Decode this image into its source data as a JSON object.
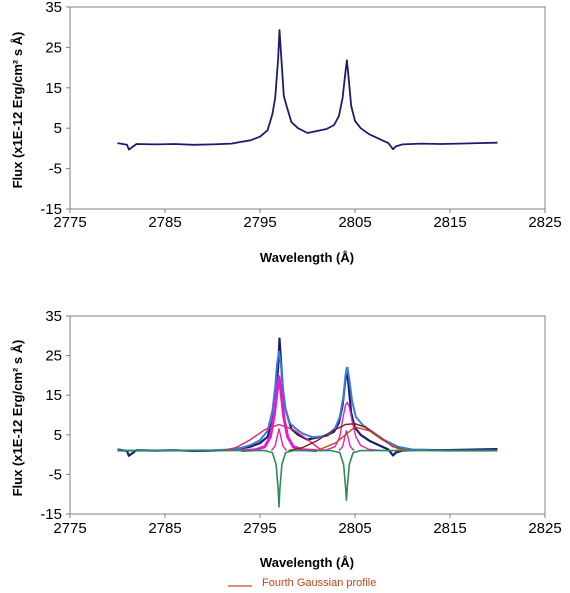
{
  "chart_data": [
    {
      "type": "line",
      "title": "",
      "xlabel": "Wavelength (Å)",
      "ylabel": "Flux (x1E-12 Erg/cm² s Å)",
      "xlim": [
        2775,
        2825
      ],
      "ylim": [
        -15,
        35
      ],
      "xticks": [
        "2775",
        "2785",
        "2795",
        "2805",
        "2815",
        "2825"
      ],
      "yticks": [
        "35",
        "25",
        "15",
        "5",
        "-5",
        "-15"
      ],
      "grid": false,
      "series": [
        {
          "color": "#1c1c6e",
          "x": [
            2780,
            2781,
            2781.2,
            2782,
            2784,
            2786,
            2788,
            2790,
            2792,
            2793,
            2794,
            2795,
            2795.8,
            2796.3,
            2796.6,
            2796.9,
            2797.05,
            2797.2,
            2797.5,
            2797.8,
            2798.3,
            2799,
            2800,
            2801,
            2802,
            2802.8,
            2803.3,
            2803.7,
            2804,
            2804.15,
            2804.3,
            2804.6,
            2805,
            2805.6,
            2806.5,
            2807.5,
            2808.5,
            2809,
            2809.3,
            2810,
            2812,
            2814,
            2816,
            2818,
            2820
          ],
          "y": [
            1.3,
            0.9,
            -0.3,
            1.1,
            1.0,
            1.1,
            0.9,
            1.0,
            1.2,
            1.6,
            2.0,
            2.9,
            4.5,
            8.5,
            12.5,
            22,
            29.3,
            24,
            13,
            10.5,
            6.5,
            5.0,
            3.8,
            4.3,
            4.8,
            5.8,
            8.0,
            12.5,
            19,
            21.8,
            18,
            10.5,
            6.8,
            5.0,
            3.5,
            2.4,
            1.3,
            -0.2,
            0.5,
            1.0,
            1.2,
            1.1,
            1.2,
            1.3,
            1.4
          ]
        }
      ]
    },
    {
      "type": "line",
      "title": "",
      "xlabel": "Wavelength (Å)",
      "ylabel": "Flux (x1E-12 Erg/cm² s Å)",
      "xlim": [
        2775,
        2825
      ],
      "ylim": [
        -15,
        35
      ],
      "xticks": [
        "2775",
        "2785",
        "2795",
        "2805",
        "2815",
        "2825"
      ],
      "yticks": [
        "35",
        "25",
        "15",
        "5",
        "-5",
        "-15"
      ],
      "grid": false,
      "legend": {
        "placement": "bottom-center",
        "entries": [
          "Fourth Gaussian profile"
        ]
      },
      "series": [
        {
          "color": "#1c1c6e",
          "x": [
            2780,
            2781,
            2781.2,
            2782,
            2784,
            2786,
            2788,
            2790,
            2792,
            2793,
            2794,
            2795,
            2795.8,
            2796.3,
            2796.6,
            2796.9,
            2797.05,
            2797.2,
            2797.5,
            2797.8,
            2798.3,
            2799,
            2800,
            2801,
            2802,
            2802.8,
            2803.3,
            2803.7,
            2804,
            2804.15,
            2804.3,
            2804.6,
            2805,
            2805.6,
            2806.5,
            2807.5,
            2808.5,
            2809,
            2809.3,
            2810,
            2812,
            2814,
            2816,
            2818,
            2820
          ],
          "y": [
            1.3,
            0.9,
            -0.3,
            1.1,
            1.0,
            1.1,
            0.9,
            1.0,
            1.2,
            1.6,
            2.0,
            2.9,
            4.5,
            8.5,
            12.5,
            22,
            29.3,
            24,
            13,
            10.5,
            6.5,
            5.0,
            3.8,
            4.3,
            4.8,
            5.8,
            8.0,
            12.5,
            19,
            21.8,
            18,
            10.5,
            6.8,
            5.0,
            3.5,
            2.4,
            1.3,
            -0.2,
            0.5,
            1.0,
            1.2,
            1.1,
            1.2,
            1.3,
            1.4
          ]
        },
        {
          "color": "#3c7bdc",
          "x": [
            2780,
            2785,
            2790,
            2792,
            2793,
            2794,
            2795,
            2795.8,
            2796.3,
            2796.6,
            2796.8,
            2797.0,
            2797.2,
            2797.4,
            2797.7,
            2798.1,
            2798.8,
            2799.5,
            2800.5,
            2801.5,
            2802.3,
            2802.9,
            2803.4,
            2803.8,
            2804.0,
            2804.2,
            2804.4,
            2804.7,
            2805.1,
            2805.8,
            2806.8,
            2808,
            2809.5,
            2811,
            2814,
            2817,
            2820
          ],
          "y": [
            1.0,
            1.0,
            1.1,
            1.3,
            1.7,
            2.4,
            3.6,
            6.0,
            11,
            17,
            23,
            26,
            23,
            17,
            11.5,
            8.0,
            6.5,
            5.3,
            4.4,
            4.6,
            5.3,
            6.7,
            9.5,
            15,
            20,
            22,
            19,
            13.5,
            9.5,
            7.5,
            5.8,
            3.8,
            2.0,
            1.3,
            1.0,
            1.0,
            1.0
          ]
        },
        {
          "color": "#e020c8",
          "x": [
            2793,
            2794.5,
            2795.5,
            2796.1,
            2796.5,
            2796.8,
            2797.0,
            2797.2,
            2797.5,
            2797.9,
            2798.5,
            2799.5,
            2801
          ],
          "y": [
            1.0,
            1.2,
            2.0,
            4.5,
            10,
            16,
            19.7,
            16,
            9.5,
            4.5,
            2.0,
            1.2,
            1.0
          ]
        },
        {
          "color": "#e020c8",
          "x": [
            2796.2,
            2796.6,
            2796.85,
            2797.0,
            2797.15,
            2797.4,
            2797.8
          ],
          "y": [
            1.0,
            2.2,
            5.0,
            6.5,
            5.0,
            2.2,
            1.0
          ]
        },
        {
          "color": "#e020c8",
          "x": [
            2800.5,
            2802,
            2802.9,
            2803.4,
            2803.75,
            2804.0,
            2804.2,
            2804.4,
            2804.7,
            2805.1,
            2805.6,
            2806.5,
            2808
          ],
          "y": [
            1.0,
            1.2,
            2.0,
            4.5,
            9.5,
            12.5,
            13.2,
            12,
            8.5,
            4.5,
            2.3,
            1.3,
            1.0
          ]
        },
        {
          "color": "#e020c8",
          "x": [
            2803.3,
            2803.7,
            2803.95,
            2804.1,
            2804.25,
            2804.5,
            2804.9
          ],
          "y": [
            1.0,
            2.0,
            4.5,
            6.0,
            4.5,
            2.0,
            1.0
          ]
        },
        {
          "color": "#e0206e",
          "x": [
            2791,
            2792.5,
            2794,
            2795.5,
            2797,
            2798.5,
            2800,
            2801.5
          ],
          "y": [
            1.0,
            1.8,
            3.8,
            6.3,
            7.6,
            6.3,
            3.8,
            1.0
          ]
        },
        {
          "color": "#8b1a1a",
          "x": [
            2798,
            2799.5,
            2801,
            2802.5,
            2804,
            2805,
            2806,
            2807.5,
            2809,
            2810.5
          ],
          "y": [
            1.0,
            1.8,
            3.5,
            5.8,
            7.6,
            7.8,
            7.0,
            4.5,
            2.0,
            1.0
          ]
        },
        {
          "color": "#c84a1a",
          "x": [
            2801,
            2803,
            2805,
            2806.5,
            2808,
            2809.5,
            2811
          ],
          "y": [
            1.0,
            3.0,
            7.0,
            6.0,
            3.5,
            1.5,
            1.0
          ]
        },
        {
          "color": "#2e8b57",
          "x": [
            2780,
            2792,
            2795.5,
            2796.3,
            2796.7,
            2796.9,
            2797.0,
            2797.1,
            2797.3,
            2797.7,
            2798.5,
            2802.5,
            2803.4,
            2803.8,
            2804.0,
            2804.1,
            2804.2,
            2804.4,
            2804.8,
            2805.6,
            2820
          ],
          "y": [
            1.0,
            1.0,
            1.0,
            0.5,
            -2.5,
            -8.5,
            -13.2,
            -8.5,
            -2.5,
            0.5,
            1.0,
            1.0,
            0.5,
            -2.5,
            -8.0,
            -11.5,
            -8.0,
            -2.5,
            0.5,
            1.0,
            1.0
          ]
        }
      ]
    }
  ]
}
